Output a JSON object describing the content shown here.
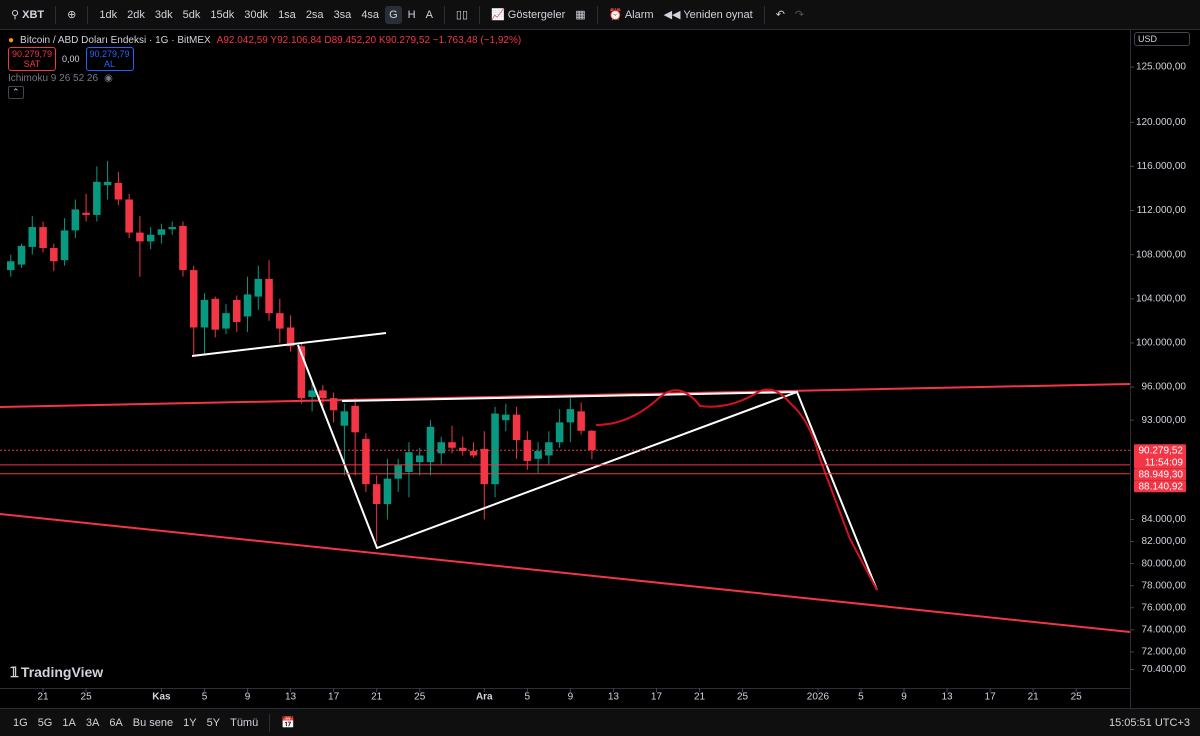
{
  "toolbar": {
    "symbol": "XBT",
    "intervals": [
      "1dk",
      "2dk",
      "3dk",
      "5dk",
      "15dk",
      "30dk",
      "1sa",
      "2sa",
      "3sa",
      "4sa",
      "G",
      "H",
      "A"
    ],
    "indicators": "Göstergeler",
    "alert": "Alarm",
    "replay": "Yeniden oynat"
  },
  "legend": {
    "title": "Bitcoin / ABD Doları Endeksi · 1G · BitMEX",
    "ohlc": "A92.042,59 Y92.106,84 D89.452,20 K90.279,52 −1.763,48 (−1,92%)",
    "sell_price": "90.279,79",
    "sell": "SAT",
    "spread": "0,00",
    "buy_price": "90.279,79",
    "buy": "AL",
    "indicator": "Ichimoku 9 26 52 26"
  },
  "currency": "USD",
  "chart_data": {
    "type": "candlestick",
    "xlim": [
      -4,
      101
    ],
    "xticks": [
      {
        "value": 0,
        "label": "21"
      },
      {
        "value": 4,
        "label": "25"
      },
      {
        "value": 11,
        "label": "Kas"
      },
      {
        "value": 15,
        "label": "5"
      },
      {
        "value": 19,
        "label": "9"
      },
      {
        "value": 23,
        "label": "13"
      },
      {
        "value": 27,
        "label": "17"
      },
      {
        "value": 31,
        "label": "21"
      },
      {
        "value": 35,
        "label": "25"
      },
      {
        "value": 41,
        "label": "Ara"
      },
      {
        "value": 45,
        "label": "5"
      },
      {
        "value": 49,
        "label": "9"
      },
      {
        "value": 53,
        "label": "13"
      },
      {
        "value": 57,
        "label": "17"
      },
      {
        "value": 61,
        "label": "21"
      },
      {
        "value": 65,
        "label": "25"
      },
      {
        "value": 72,
        "label": "2026"
      },
      {
        "value": 76,
        "label": "5"
      },
      {
        "value": 80,
        "label": "9"
      },
      {
        "value": 84,
        "label": "13"
      },
      {
        "value": 88,
        "label": "17"
      },
      {
        "value": 92,
        "label": "21"
      },
      {
        "value": 96,
        "label": "25"
      }
    ],
    "ylim": [
      69000,
      127000
    ],
    "yticks": [
      {
        "value": 125000,
        "label": "125.000,00"
      },
      {
        "value": 120000,
        "label": "120.000,00"
      },
      {
        "value": 116000,
        "label": "116.000,00"
      },
      {
        "value": 112000,
        "label": "112.000,00"
      },
      {
        "value": 108000,
        "label": "108.000,00"
      },
      {
        "value": 104000,
        "label": "104.000,00"
      },
      {
        "value": 100000,
        "label": "100.000,00"
      },
      {
        "value": 96000,
        "label": "96.000,00"
      },
      {
        "value": 93000,
        "label": "93.000,00"
      },
      {
        "value": 84000,
        "label": "84.000,00"
      },
      {
        "value": 82000,
        "label": "82.000,00"
      },
      {
        "value": 80000,
        "label": "80.000,00"
      },
      {
        "value": 78000,
        "label": "78.000,00"
      },
      {
        "value": 76000,
        "label": "76.000,00"
      },
      {
        "value": 74000,
        "label": "74.000,00"
      },
      {
        "value": 72000,
        "label": "72.000,00"
      },
      {
        "value": 70400,
        "label": "70.400,00"
      }
    ],
    "up_color": "#089981",
    "down_color": "#f23645",
    "candles": {
      "x": [
        -3,
        -2,
        -1,
        0,
        1,
        2,
        3,
        4,
        5,
        6,
        7,
        8,
        9,
        10,
        11,
        12,
        13,
        14,
        15,
        16,
        17,
        18,
        19,
        20,
        21,
        22,
        23,
        24,
        25,
        26,
        27,
        28,
        29,
        30,
        31,
        32,
        33,
        34,
        35,
        36,
        37,
        38,
        39,
        40,
        41,
        42,
        43,
        44,
        45,
        46,
        47,
        48,
        49,
        50,
        51
      ],
      "open": [
        106600,
        107100,
        108700,
        110500,
        108600,
        107500,
        110200,
        111800,
        111600,
        114300,
        114500,
        113000,
        110000,
        109200,
        109800,
        110300,
        110600,
        106600,
        101400,
        104000,
        101300,
        103900,
        102400,
        104200,
        105800,
        102700,
        101400,
        99700,
        95100,
        95700,
        95000,
        92500,
        94300,
        91300,
        87200,
        85400,
        87700,
        88300,
        89200,
        89200,
        90000,
        91000,
        90500,
        90200,
        90400,
        87200,
        93000,
        93500,
        91200,
        89500,
        89800,
        91000,
        92800,
        93800,
        92042.59
      ],
      "high": [
        108000,
        109000,
        111500,
        111000,
        109000,
        111300,
        113000,
        113500,
        116000,
        116500,
        115500,
        113500,
        111500,
        110500,
        110800,
        111000,
        111000,
        107000,
        104500,
        104200,
        103500,
        104300,
        106000,
        107000,
        107500,
        104000,
        102500,
        100000,
        96500,
        96200,
        95500,
        94500,
        95000,
        91800,
        88000,
        89500,
        89500,
        91000,
        90500,
        93000,
        91500,
        92500,
        91500,
        91000,
        92000,
        94200,
        94500,
        94200,
        92000,
        91000,
        92000,
        94000,
        95000,
        94600,
        92106.84
      ],
      "low": [
        106000,
        106800,
        108000,
        108200,
        106500,
        107000,
        109500,
        111000,
        111000,
        113000,
        112500,
        109500,
        106000,
        108500,
        109000,
        109800,
        106000,
        98900,
        99000,
        100500,
        100800,
        101000,
        101000,
        103000,
        102000,
        100000,
        99200,
        94500,
        93800,
        94200,
        92800,
        88000,
        88000,
        86500,
        82000,
        84000,
        86500,
        86000,
        88000,
        88000,
        89000,
        90000,
        89800,
        89600,
        84000,
        86000,
        92000,
        89500,
        88500,
        88200,
        89000,
        90500,
        91000,
        91700,
        89452.2
      ],
      "close": [
        107400,
        108800,
        110500,
        108600,
        107400,
        110200,
        112100,
        111600,
        114600,
        114600,
        113000,
        110000,
        109200,
        109800,
        110300,
        110500,
        106600,
        101400,
        103900,
        101200,
        102700,
        101900,
        104400,
        105800,
        102700,
        101300,
        99700,
        95000,
        95700,
        95000,
        93900,
        93800,
        91900,
        87200,
        85400,
        87700,
        88900,
        90100,
        89800,
        92400,
        91000,
        90500,
        90200,
        89800,
        87200,
        93600,
        93500,
        91200,
        89300,
        90200,
        91000,
        92800,
        94000,
        92040,
        90279.52
      ]
    },
    "price_lines": [
      {
        "value": 90279.52,
        "label": "90.279,52",
        "color": "#f23645"
      },
      {
        "value": 88949.3,
        "label": "88.949,30",
        "color": "#f23645"
      },
      {
        "value": 88140.92,
        "label": "88.140,92",
        "color": "#f23645"
      }
    ],
    "countdown": "11:54:09"
  },
  "watermark": "TradingView",
  "bottom_bar": {
    "ranges": [
      "1G",
      "5G",
      "1A",
      "3A",
      "6A",
      "Bu sene",
      "1Y",
      "5Y",
      "Tümü"
    ],
    "clock": "15:05:51 UTC+3"
  }
}
